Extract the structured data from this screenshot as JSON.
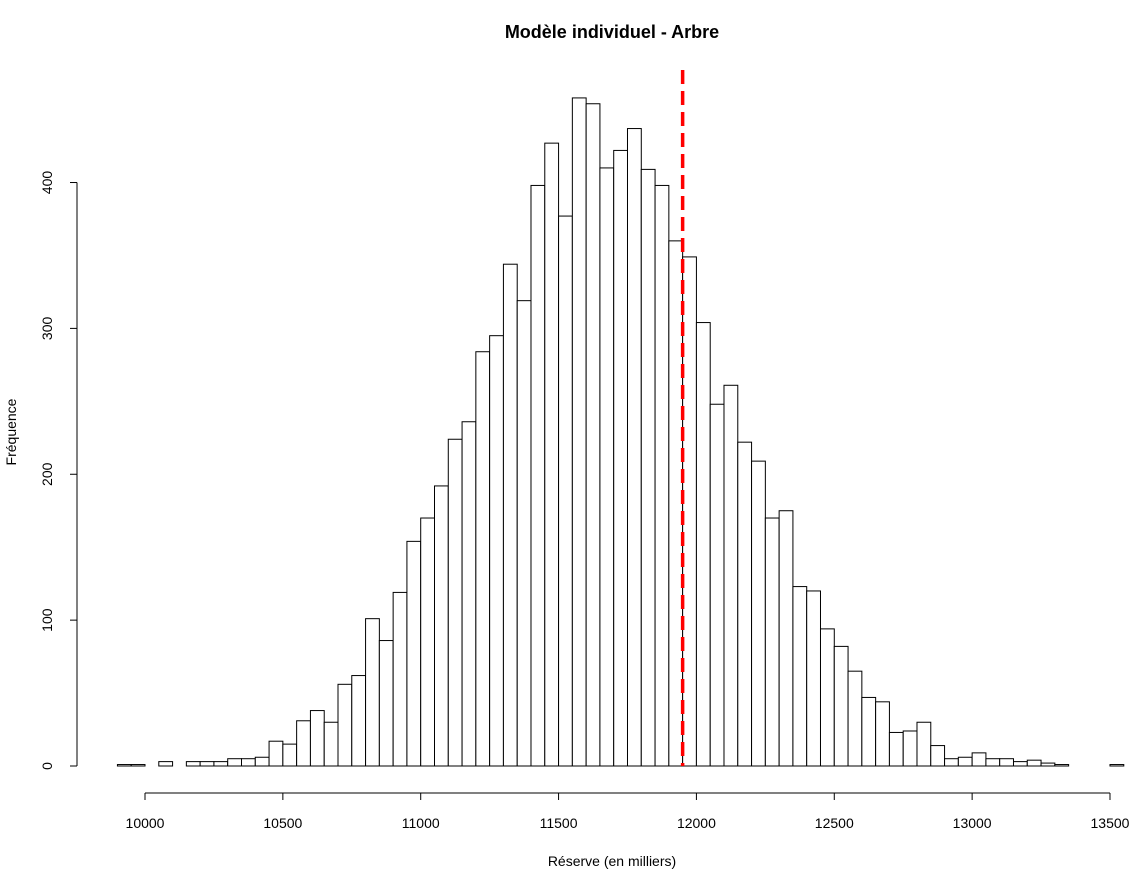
{
  "chart_data": {
    "type": "bar",
    "subtype": "histogram",
    "title": "Modèle individuel - Arbre",
    "xlabel": "Réserve (en milliers)",
    "ylabel": "Fréquence",
    "bin_width": 50,
    "bin_start": 9900,
    "counts": [
      1,
      1,
      0,
      3,
      0,
      3,
      3,
      3,
      5,
      5,
      6,
      17,
      15,
      31,
      38,
      30,
      56,
      62,
      101,
      86,
      119,
      154,
      170,
      192,
      224,
      236,
      284,
      295,
      344,
      319,
      398,
      427,
      377,
      458,
      454,
      410,
      422,
      437,
      409,
      398,
      360,
      349,
      304,
      248,
      261,
      222,
      209,
      170,
      175,
      123,
      120,
      94,
      82,
      65,
      47,
      44,
      23,
      24,
      30,
      14,
      5,
      6,
      9,
      5,
      5,
      3,
      4,
      2,
      1,
      0,
      0,
      0,
      1
    ],
    "xlim": [
      9900,
      13500
    ],
    "ylim": [
      0,
      470
    ],
    "x_ticks": [
      10000,
      10500,
      11000,
      11500,
      12000,
      12500,
      13000,
      13500
    ],
    "y_ticks": [
      0,
      100,
      200,
      300,
      400
    ],
    "reference_line": {
      "x": 11950,
      "style": "dashed",
      "color": "#ff0000"
    },
    "bar_fill": "#ffffff",
    "bar_stroke": "#000000",
    "grid": false,
    "legend": "none"
  }
}
